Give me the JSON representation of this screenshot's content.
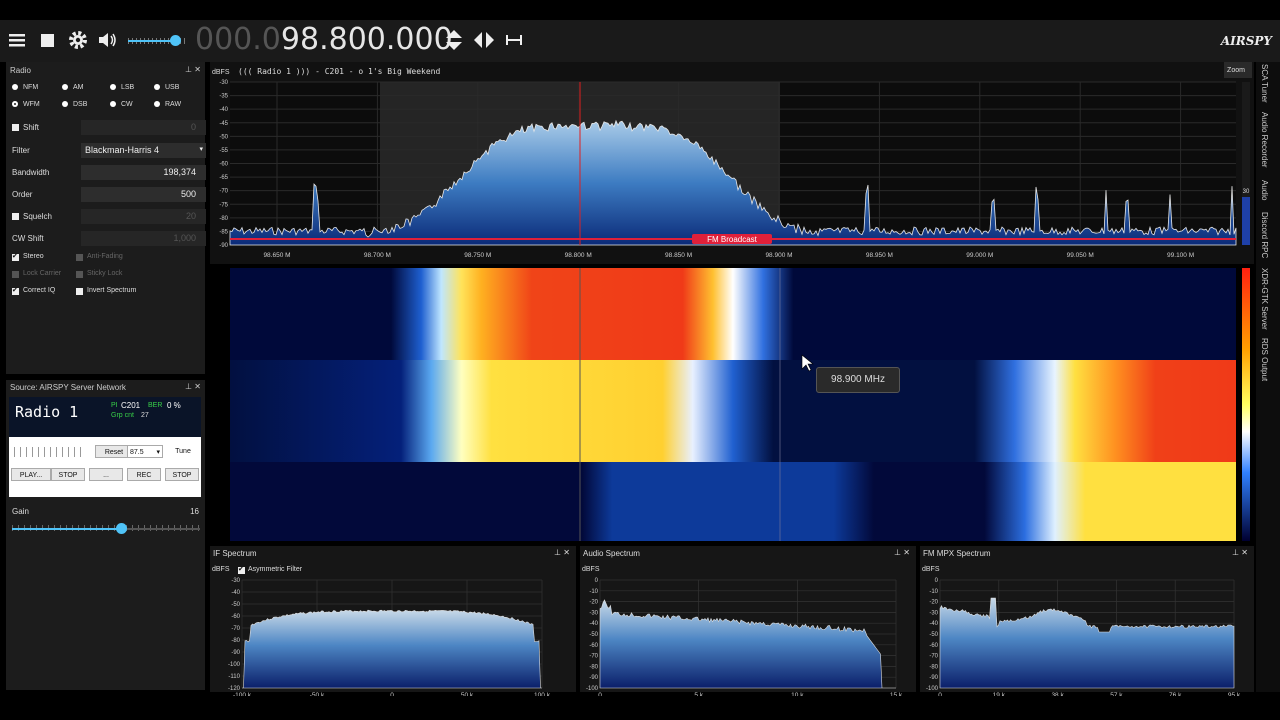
{
  "toolbar": {
    "freq_dim": "000.0",
    "freq_main": "98.800.000",
    "logo": "AIRSPY"
  },
  "radio_panel": {
    "title": "Radio",
    "modes": [
      "NFM",
      "AM",
      "LSB",
      "USB",
      "WFM",
      "DSB",
      "CW",
      "RAW"
    ],
    "shift_label": "Shift",
    "shift_value": "0",
    "filter_label": "Filter",
    "filter_value": "Blackman-Harris 4",
    "bandwidth_label": "Bandwidth",
    "bandwidth_value": "198,374",
    "order_label": "Order",
    "order_value": "500",
    "squelch_label": "Squelch",
    "squelch_value": "20",
    "cwshift_label": "CW Shift",
    "cwshift_value": "1,000",
    "stereo": "Stereo",
    "anti_fading": "Anti-Fading",
    "lock_carrier": "Lock Carrier",
    "sticky_lock": "Sticky Lock",
    "correct_iq": "Correct IQ",
    "invert_spectrum": "Invert Spectrum"
  },
  "source_panel": {
    "title": "Source: AIRSPY Server Network",
    "rds_name": "Radio 1",
    "pi_label": "PI",
    "pi_value": "C201",
    "ber_label": "BER",
    "ber_value": "0 %",
    "grp_label": "Grp cnt",
    "grp_value": "27",
    "reset": "Reset",
    "freq_select": "87.5",
    "tune": "Tune",
    "play": "PLAY...",
    "stop1": "STOP",
    "dots": "...",
    "rec": "REC",
    "stop2": "STOP",
    "gain_label": "Gain",
    "gain_value": "16"
  },
  "spectrum": {
    "ylabel": "dBFS",
    "rds_text": "((( Radio 1 ))) - C201 -        o 1's Big Weekend",
    "zoom": "Zoom",
    "yticks": [
      "-30",
      "-35",
      "-40",
      "-45",
      "-50",
      "-55",
      "-60",
      "-65",
      "-70",
      "-75",
      "-80",
      "-85",
      "-90"
    ],
    "xticks": [
      "98.650 M",
      "98.700 M",
      "98.750 M",
      "98.800 M",
      "98.850 M",
      "98.900 M",
      "98.950 M",
      "99.000 M",
      "99.050 M",
      "99.100 M"
    ],
    "band_label": "FM Broadcast",
    "range_value": "30"
  },
  "tooltip": "98.900 MHz",
  "right_tabs": [
    "SCA Tuner",
    "Audio Recorder",
    "Audio",
    "Discord RPC",
    "XDR-GTK Server",
    "RDS Output"
  ],
  "if_spectrum": {
    "title": "IF Spectrum",
    "ylabel": "dBFS",
    "option": "Asymmetric Filter",
    "yticks": [
      "-30",
      "-40",
      "-50",
      "-60",
      "-70",
      "-80",
      "-90",
      "-100",
      "-110",
      "-120"
    ],
    "xticks": [
      "-100 k",
      "-50 k",
      "0",
      "50 k",
      "100 k"
    ]
  },
  "audio_spectrum": {
    "title": "Audio Spectrum",
    "ylabel": "dBFS",
    "yticks": [
      "0",
      "-10",
      "-20",
      "-30",
      "-40",
      "-50",
      "-60",
      "-70",
      "-80",
      "-90",
      "-100"
    ],
    "xticks": [
      "0",
      "5 k",
      "10 k",
      "15 k"
    ]
  },
  "mpx_spectrum": {
    "title": "FM MPX Spectrum",
    "ylabel": "dBFS",
    "yticks": [
      "0",
      "-10",
      "-20",
      "-30",
      "-40",
      "-50",
      "-60",
      "-70",
      "-80",
      "-90",
      "-100"
    ],
    "xticks": [
      "0",
      "19 k",
      "38 k",
      "57 k",
      "76 k",
      "95 k"
    ]
  },
  "colors": {
    "accent": "#4fc3f7",
    "band": "#e0203a"
  }
}
